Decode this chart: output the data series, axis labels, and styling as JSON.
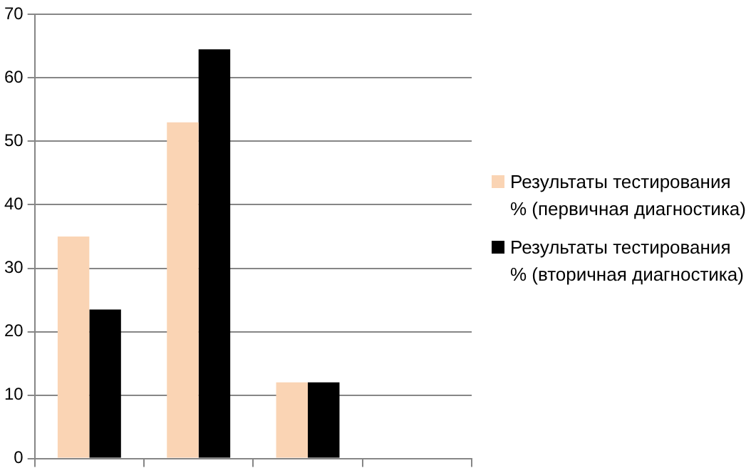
{
  "chart_data": {
    "type": "bar",
    "categories": [
      null,
      null,
      null,
      null
    ],
    "series": [
      {
        "name": "Результаты тестирования % (первичная диагностика)",
        "color": "#fad4b4",
        "values": [
          35,
          53,
          12,
          null
        ]
      },
      {
        "name": "Результаты тестирования % (вторичная диагностика)",
        "color": "#000000",
        "values": [
          23.5,
          64.5,
          12,
          null
        ]
      }
    ],
    "ylim": [
      0,
      70
    ],
    "yticks": [
      0,
      10,
      20,
      30,
      40,
      50,
      60,
      70
    ],
    "grid": "y",
    "legend": "right",
    "tick_labels": "y"
  }
}
